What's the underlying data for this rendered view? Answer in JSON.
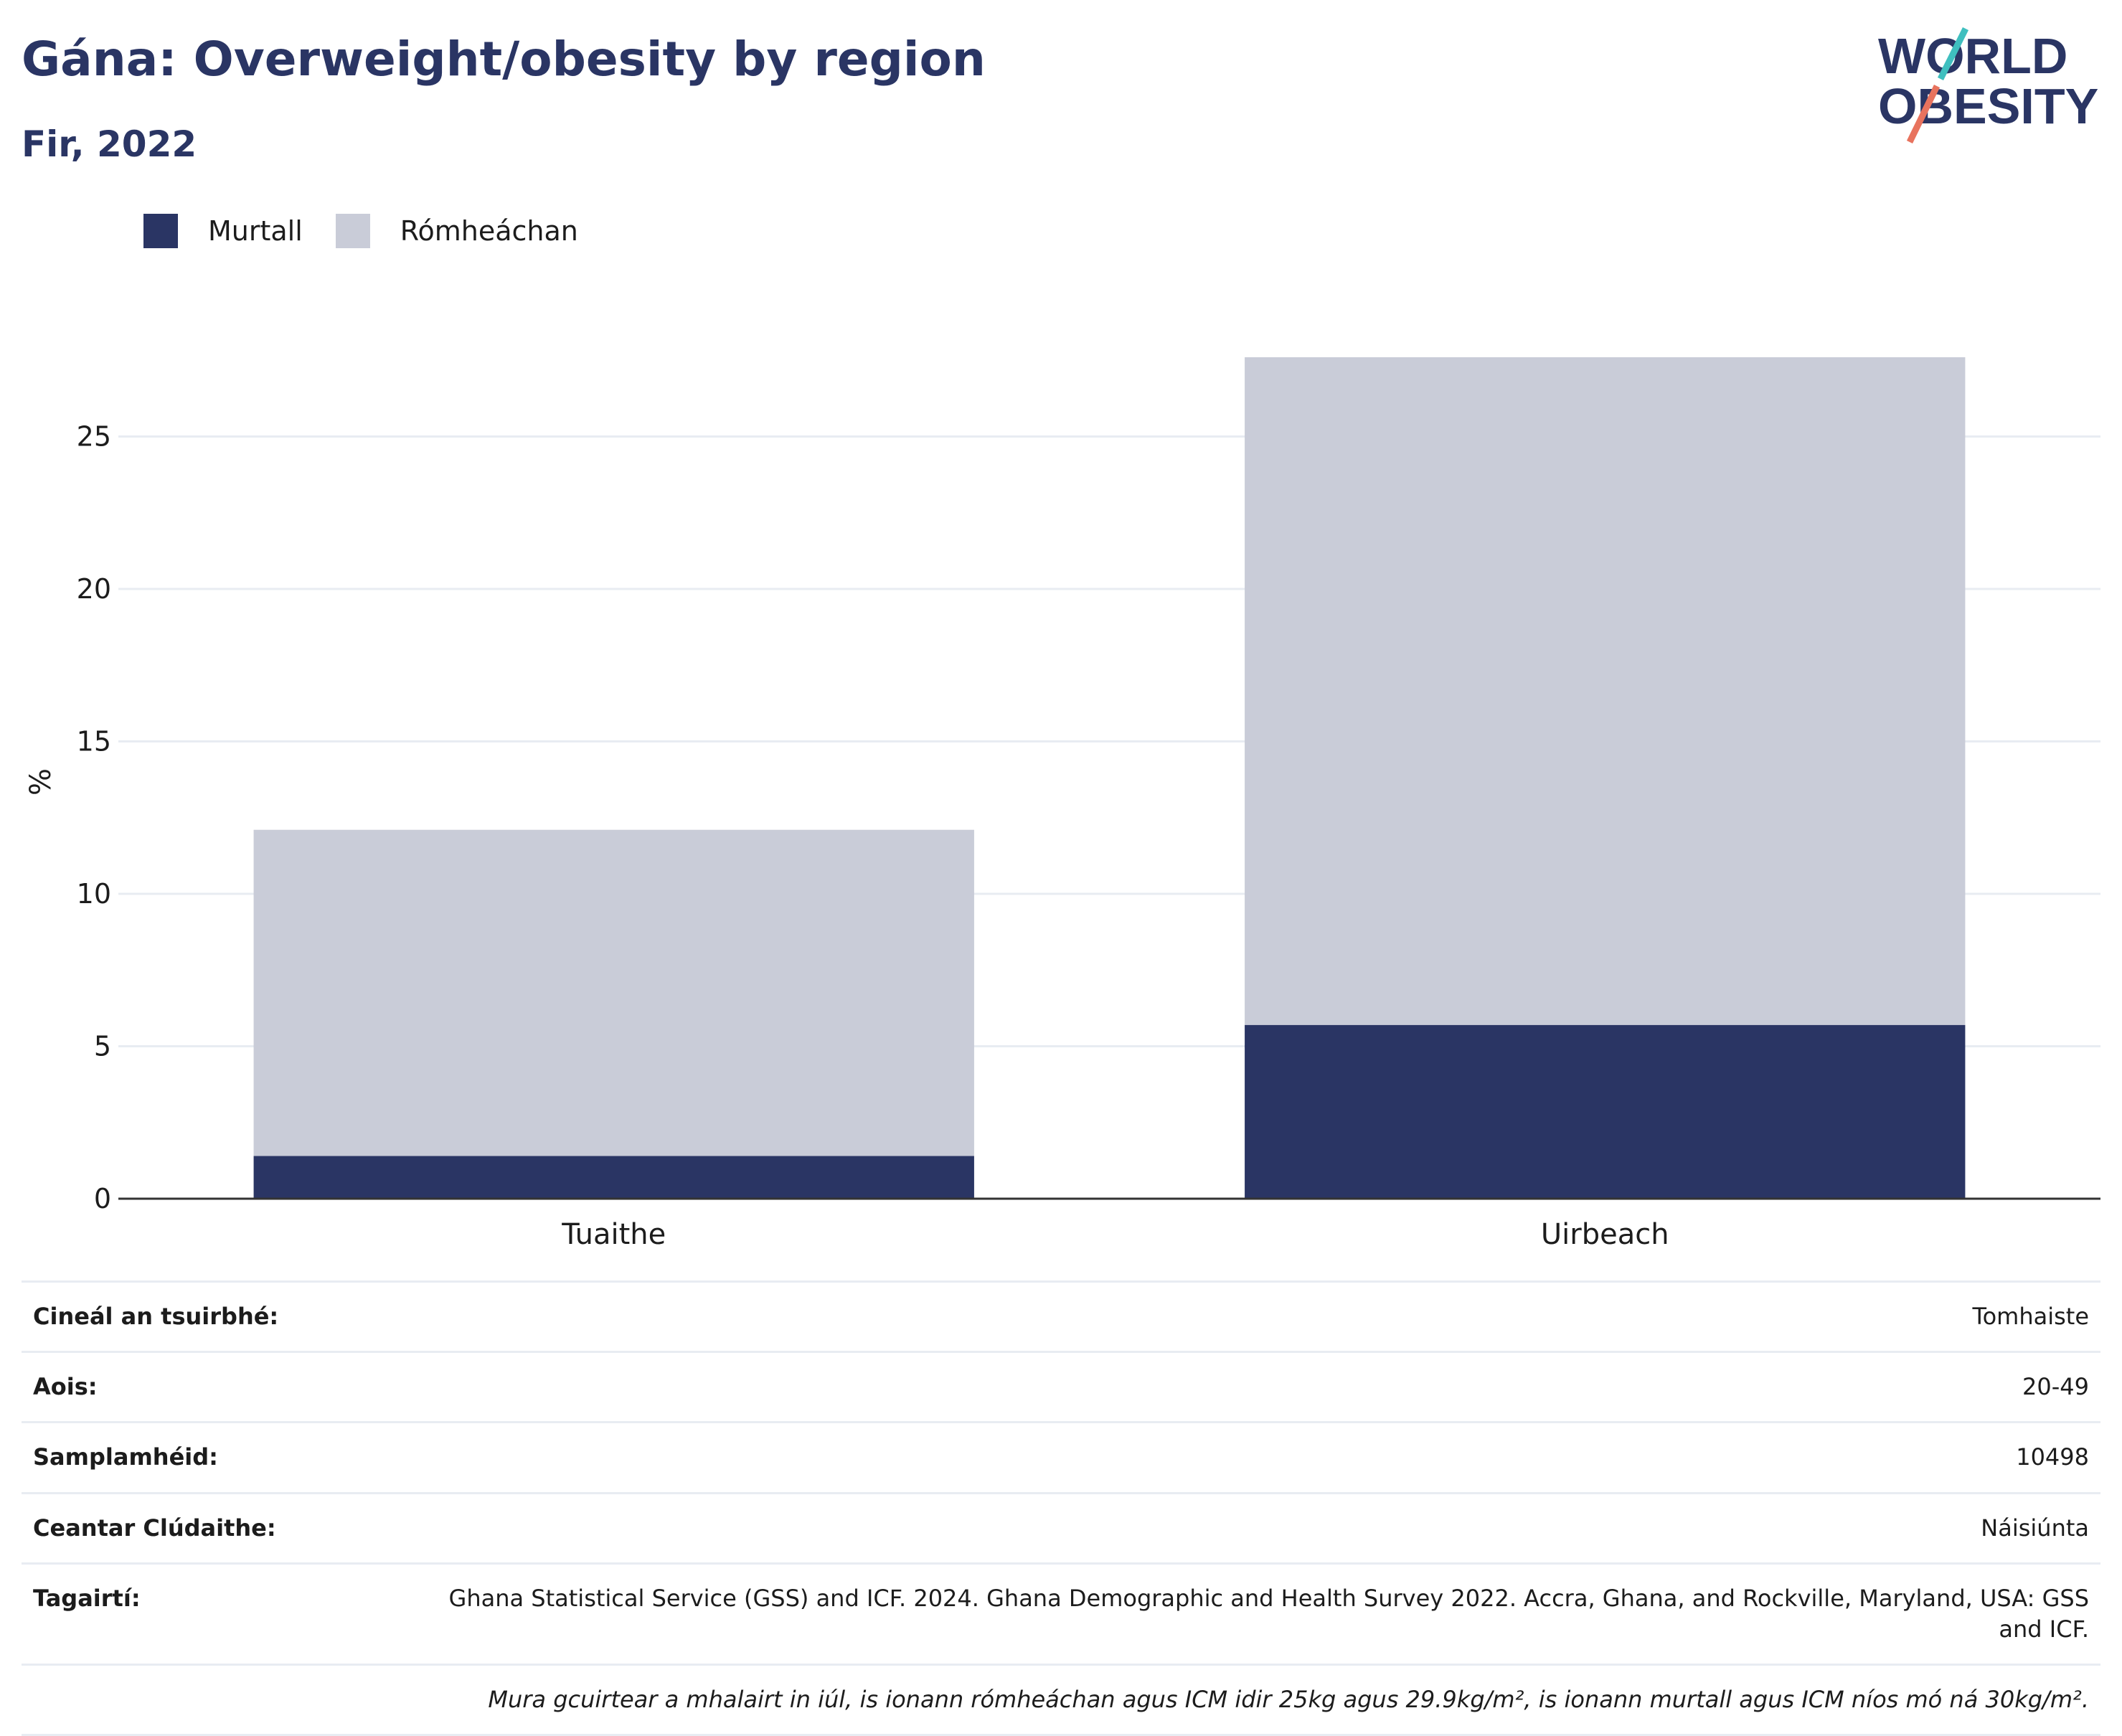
{
  "header": {
    "title": "Gána: Overweight/obesity by region",
    "subtitle": "Fir, 2022"
  },
  "logo": {
    "line1": "WORLD",
    "line2": "OBESITY",
    "colors": {
      "text": "#2a3564",
      "slash_top": "#3fbfbf",
      "slash_bottom": "#e8735e"
    }
  },
  "colors": {
    "obese": "#2a3564",
    "overweight": "#c9ccd8",
    "grid": "#e8ecf2",
    "axis": "#333333"
  },
  "chart_data": {
    "type": "bar",
    "stacked": true,
    "categories": [
      "Tuaithe",
      "Uirbeach"
    ],
    "series": [
      {
        "name": "Murtall",
        "values": [
          1.4,
          5.7
        ],
        "color": "#2a3564"
      },
      {
        "name": "Rómheáchan",
        "values": [
          10.7,
          21.9
        ],
        "color": "#c9ccd8"
      }
    ],
    "ylabel": "%",
    "yticks": [
      0,
      5,
      10,
      15,
      20,
      25
    ],
    "ylim": [
      0,
      30
    ],
    "grid": true,
    "legend_position": "top-left"
  },
  "info": [
    {
      "label": "Cineál an tsuirbhé:",
      "value": "Tomhaiste"
    },
    {
      "label": "Aois:",
      "value": "20-49"
    },
    {
      "label": "Samplamhéid:",
      "value": "10498"
    },
    {
      "label": "Ceantar Clúdaithe:",
      "value": "Náisiúnta"
    },
    {
      "label": "Tagairtí:",
      "value": "Ghana Statistical Service (GSS) and ICF. 2024. Ghana Demographic and Health Survey 2022. Accra, Ghana, and Rockville, Maryland, USA: GSS and ICF."
    }
  ],
  "note": "Mura gcuirtear a mhalairt in iúl, is ionann rómheáchan agus ICM idir 25kg agus 29.9kg/m², is ionann murtall agus ICM níos mó ná 30kg/m²."
}
